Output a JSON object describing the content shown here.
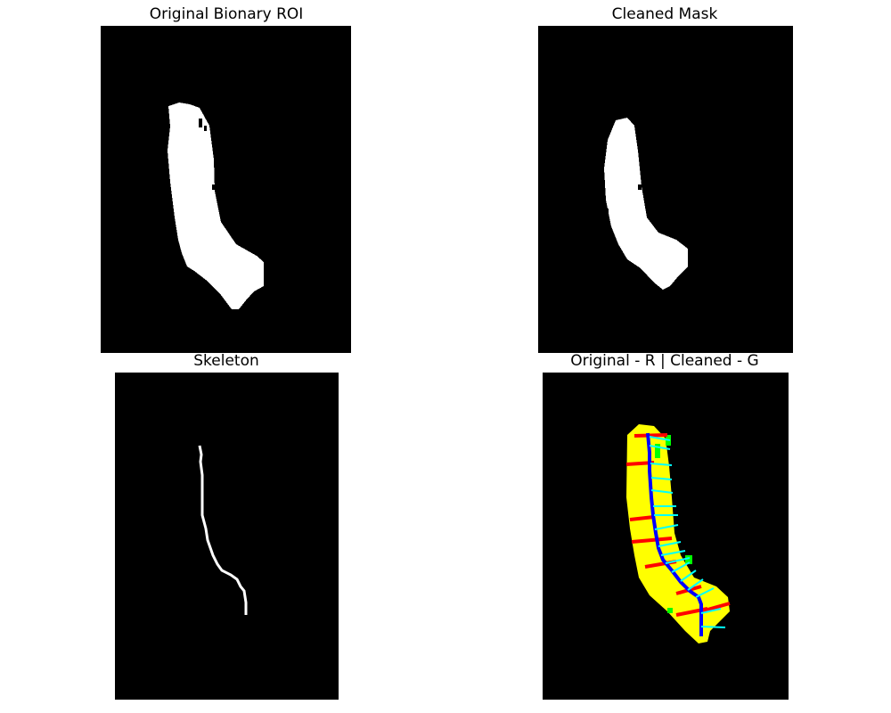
{
  "panels": {
    "original": {
      "title": "Original Bionary ROI"
    },
    "cleaned": {
      "title": "Cleaned Mask"
    },
    "skeleton": {
      "title": "Skeleton"
    },
    "overlay": {
      "title": "Original - R | Cleaned - G"
    }
  },
  "colors": {
    "background": "#000000",
    "mask": "#ffffff",
    "overlap": "#ffff00",
    "original_only": "#ff0000",
    "cleaned_only": "#00ff00",
    "skeleton_overlay": "#0000ff",
    "normals": "#00ffff"
  }
}
